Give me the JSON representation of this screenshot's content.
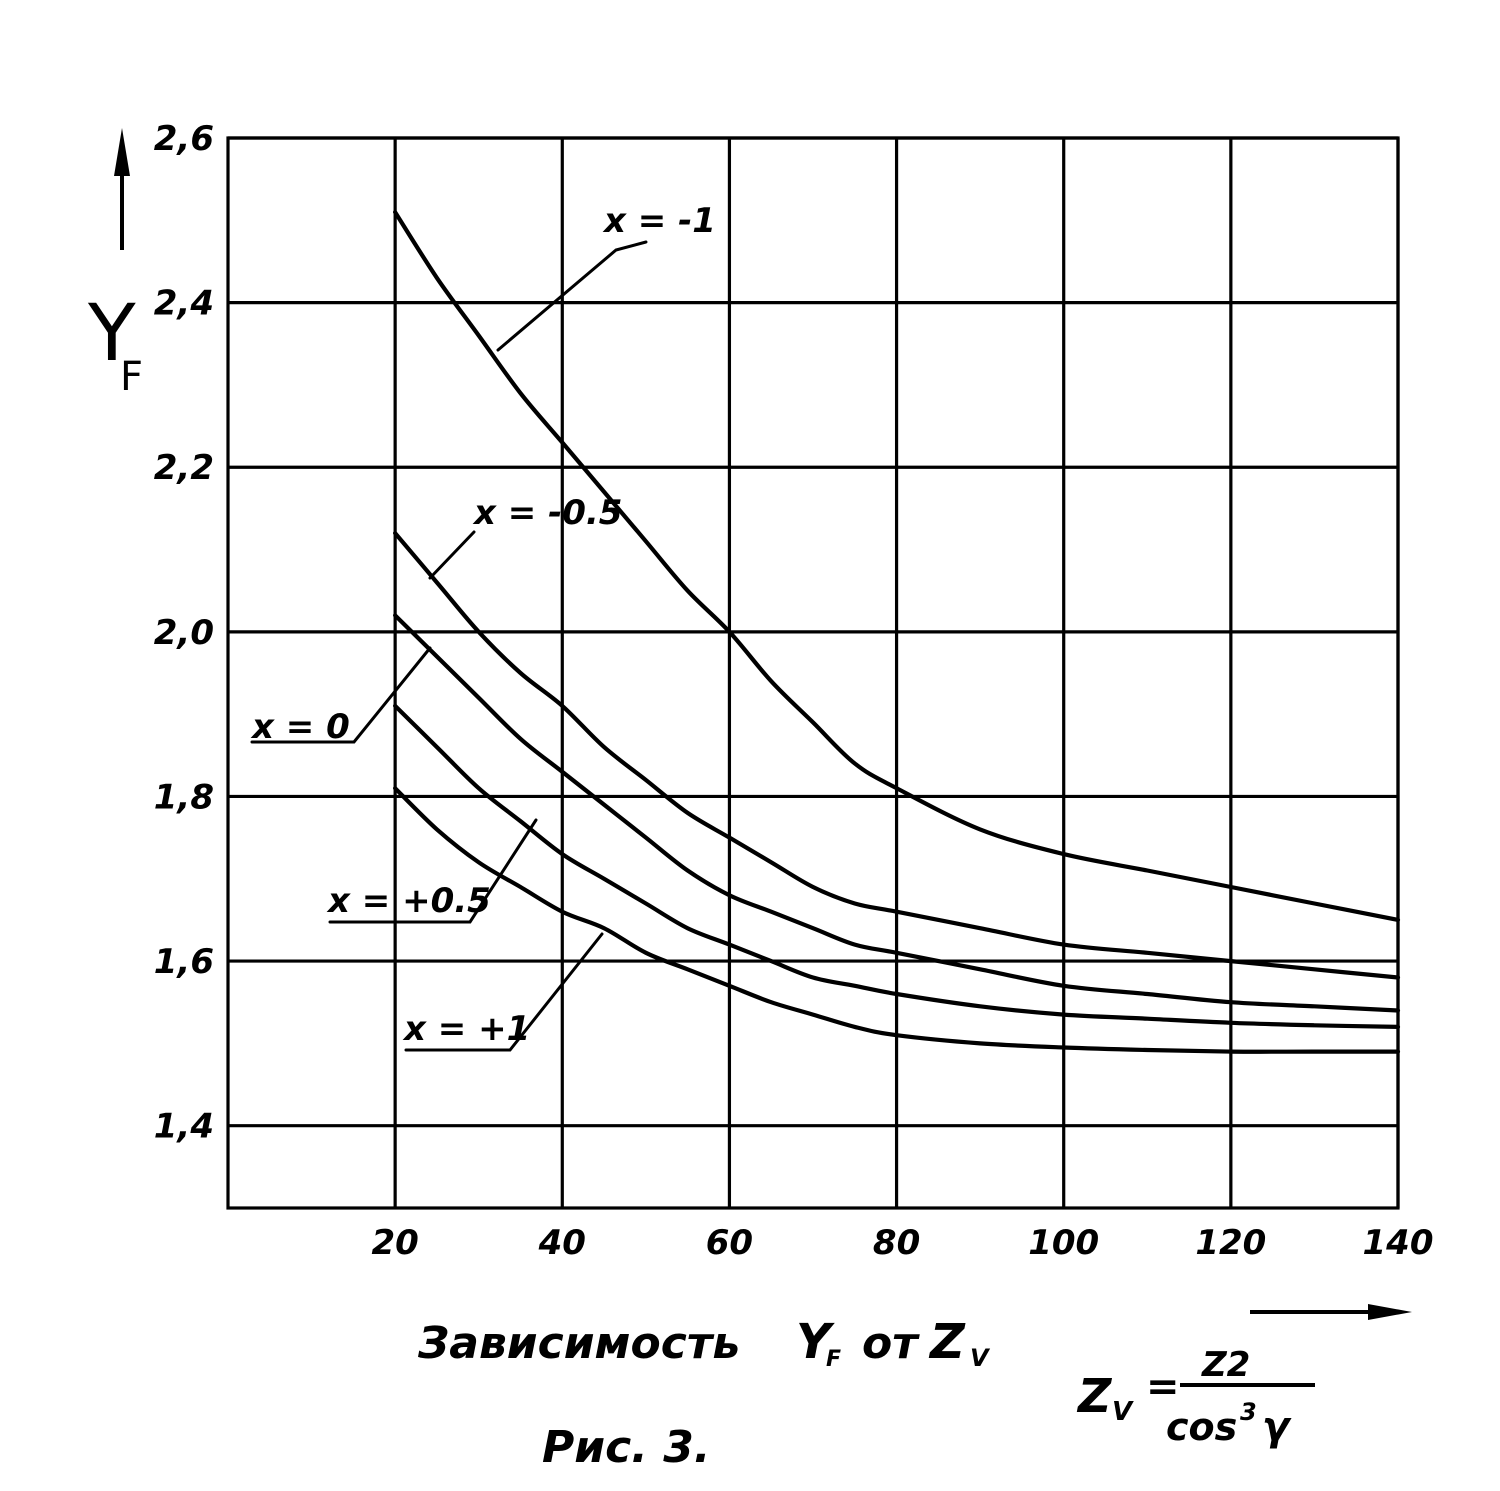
{
  "chart_data": {
    "type": "line",
    "title": "Зависимость Y<sub>F</sub> от Z<sub>V</sub>",
    "title_text": "Зависимость",
    "title_yf": "Y",
    "title_yf_sub": "F",
    "title_mid": "от",
    "title_zv": "Z",
    "title_zv_sub": "V",
    "figure_caption": "Рис. 3.",
    "ylabel": "Y",
    "ylabel_sub": "F",
    "formula": {
      "lhs": "Z",
      "lhs_sub": "V",
      "eq": "=",
      "numerator": "Z2",
      "denominator_base": "cos",
      "denominator_exp": "3",
      "denominator_var": "γ"
    },
    "xlim": [
      0,
      140
    ],
    "ylim": [
      1.3,
      2.6
    ],
    "x_ticks": [
      20,
      40,
      60,
      80,
      100,
      120,
      140
    ],
    "y_ticks": [
      1.4,
      1.6,
      1.8,
      2.0,
      2.2,
      2.4,
      2.6
    ],
    "x_tick_labels": [
      "20",
      "40",
      "60",
      "80",
      "100",
      "120",
      "140"
    ],
    "y_tick_labels": [
      "1,4",
      "1,6",
      "1,8",
      "2,0",
      "2,2",
      "2,4",
      "2,6"
    ],
    "grid": true,
    "series": [
      {
        "name": "x = -1",
        "x": [
          20,
          25,
          30,
          35,
          40,
          45,
          50,
          55,
          60,
          65,
          70,
          75,
          80,
          90,
          100,
          110,
          120,
          130,
          140
        ],
        "y": [
          2.51,
          2.43,
          2.36,
          2.29,
          2.23,
          2.17,
          2.11,
          2.05,
          2.0,
          1.94,
          1.89,
          1.84,
          1.81,
          1.76,
          1.73,
          1.71,
          1.69,
          1.67,
          1.65
        ]
      },
      {
        "name": "x = -0.5",
        "x": [
          20,
          25,
          30,
          35,
          40,
          45,
          50,
          55,
          60,
          65,
          70,
          75,
          80,
          90,
          100,
          110,
          120,
          130,
          140
        ],
        "y": [
          2.12,
          2.06,
          2.0,
          1.95,
          1.91,
          1.86,
          1.82,
          1.78,
          1.75,
          1.72,
          1.69,
          1.67,
          1.66,
          1.64,
          1.62,
          1.61,
          1.6,
          1.59,
          1.58
        ]
      },
      {
        "name": "x = 0",
        "x": [
          20,
          25,
          30,
          35,
          40,
          45,
          50,
          55,
          60,
          65,
          70,
          75,
          80,
          90,
          100,
          110,
          120,
          130,
          140
        ],
        "y": [
          2.02,
          1.97,
          1.92,
          1.87,
          1.83,
          1.79,
          1.75,
          1.71,
          1.68,
          1.66,
          1.64,
          1.62,
          1.61,
          1.59,
          1.57,
          1.56,
          1.55,
          1.545,
          1.54
        ]
      },
      {
        "name": "x = +0.5",
        "x": [
          20,
          25,
          30,
          35,
          40,
          45,
          50,
          55,
          60,
          65,
          70,
          75,
          80,
          90,
          100,
          110,
          120,
          130,
          140
        ],
        "y": [
          1.91,
          1.86,
          1.81,
          1.77,
          1.73,
          1.7,
          1.67,
          1.64,
          1.62,
          1.6,
          1.58,
          1.57,
          1.56,
          1.545,
          1.535,
          1.53,
          1.525,
          1.522,
          1.52
        ]
      },
      {
        "name": "x = +1",
        "x": [
          20,
          25,
          30,
          35,
          40,
          45,
          50,
          55,
          60,
          65,
          70,
          75,
          80,
          90,
          100,
          110,
          120,
          130,
          140
        ],
        "y": [
          1.81,
          1.76,
          1.72,
          1.69,
          1.66,
          1.64,
          1.61,
          1.59,
          1.57,
          1.55,
          1.535,
          1.52,
          1.51,
          1.5,
          1.495,
          1.492,
          1.49,
          1.49,
          1.49
        ]
      }
    ],
    "curve_labels": [
      {
        "text": "x = -1",
        "series": 0
      },
      {
        "text": "x = -0.5",
        "series": 1
      },
      {
        "text": "x = 0",
        "series": 2
      },
      {
        "text": "x = +0.5",
        "series": 3
      },
      {
        "text": "x = +1",
        "series": 4
      }
    ]
  }
}
